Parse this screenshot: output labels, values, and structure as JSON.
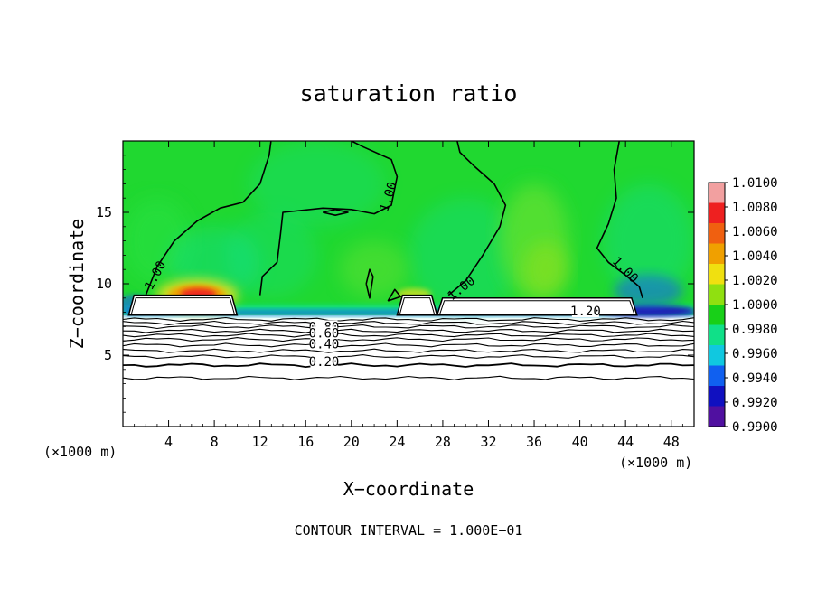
{
  "chart_data": {
    "type": "heatmap",
    "title": "saturation ratio",
    "xlabel": "X−coordinate",
    "ylabel": "Z−coordinate",
    "x_unit_left": "(×1000 m)",
    "x_unit_right": "(×1000 m)",
    "footnote": "CONTOUR INTERVAL = 1.000E−01",
    "xlim": [
      0,
      50
    ],
    "ylim": [
      0,
      20
    ],
    "x_ticks": [
      4,
      8,
      12,
      16,
      20,
      24,
      28,
      32,
      36,
      40,
      44,
      48
    ],
    "x_tick_labels": [
      "4",
      "8",
      "12",
      "16",
      "20",
      "24",
      "28",
      "32",
      "36",
      "40",
      "44",
      "48"
    ],
    "y_ticks": [
      5,
      10,
      15
    ],
    "y_tick_labels": [
      "5",
      "10",
      "15"
    ],
    "colorbar": {
      "labels": [
        "1.0100",
        "1.0080",
        "1.0060",
        "1.0040",
        "1.0020",
        "1.0000",
        "0.9980",
        "0.9960",
        "0.9940",
        "0.9920",
        "0.9900"
      ],
      "colors": [
        "#f2a0a0",
        "#ee2020",
        "#f06010",
        "#f0a000",
        "#f0e010",
        "#90e010",
        "#18d018",
        "#10e088",
        "#10c8e0",
        "#1060f0",
        "#1010c0",
        "#5010a0"
      ]
    },
    "field_colors": {
      "background": "#20d830",
      "dry_top": "#28e040",
      "light_green": "#58e030",
      "cyan": "#10e0a0",
      "blue": "#1860f0",
      "dark_blue": "#2010b0",
      "yellow": "#f0e020",
      "orange": "#f0a000",
      "red": "#ee2020",
      "cloud": "#ffffff"
    },
    "cloud_regions": [
      {
        "x_start": 0.5,
        "x_end": 10.0,
        "z_bottom": 7.8,
        "z_top": 9.2
      },
      {
        "x_start": 24.0,
        "x_end": 27.5,
        "z_bottom": 7.8,
        "z_top": 9.2
      },
      {
        "x_start": 27.5,
        "x_end": 45.0,
        "z_bottom": 7.8,
        "z_top": 9.0
      }
    ],
    "contour_labels": [
      {
        "text": "1.00",
        "x": 2.8,
        "z": 10.6,
        "angle": -62
      },
      {
        "text": "1.00",
        "x": 23.2,
        "z": 16.1,
        "angle": -72
      },
      {
        "text": "1.00",
        "x": 29.6,
        "z": 9.7,
        "angle": -38
      },
      {
        "text": "1.00",
        "x": 44.0,
        "z": 11.0,
        "angle": 45
      },
      {
        "text": "1.20",
        "x": 40.5,
        "z": 8.1,
        "angle": 0
      },
      {
        "text": "0.80",
        "x": 17.6,
        "z": 7.0,
        "angle": 0
      },
      {
        "text": "0.60",
        "x": 17.6,
        "z": 6.55,
        "angle": 0
      },
      {
        "text": "0.40",
        "x": 17.6,
        "z": 5.8,
        "angle": 0
      },
      {
        "text": "0.20",
        "x": 17.6,
        "z": 4.55,
        "angle": 0
      }
    ],
    "horizontal_contours_z": [
      7.5,
      7.25,
      7.0,
      6.7,
      6.4,
      6.1,
      5.7,
      5.3,
      4.9,
      4.3,
      3.4
    ]
  }
}
